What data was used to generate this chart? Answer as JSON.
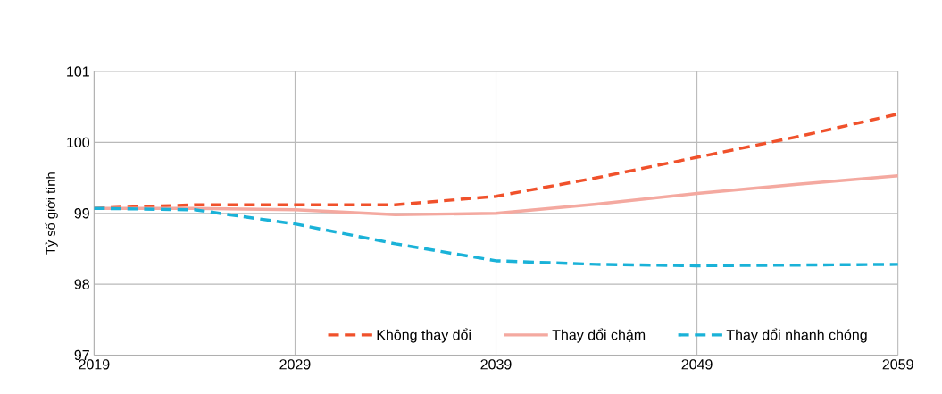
{
  "chart_data": {
    "type": "line",
    "ylabel": "Tỷ số giới tính",
    "x": [
      2019,
      2024,
      2029,
      2034,
      2039,
      2044,
      2049,
      2054,
      2059
    ],
    "series": [
      {
        "name": "Không thay đổi",
        "color": "#f0512b",
        "line_style": "dashed",
        "values": [
          99.07,
          99.12,
          99.12,
          99.12,
          99.24,
          99.5,
          99.79,
          100.08,
          100.4
        ]
      },
      {
        "name": "Thay đổi chậm",
        "color": "#f4a9a0",
        "line_style": "solid",
        "values": [
          99.07,
          99.07,
          99.05,
          98.98,
          99.0,
          99.13,
          99.28,
          99.41,
          99.53
        ]
      },
      {
        "name": "Thay đổi nhanh chóng",
        "color": "#1ab2d8",
        "line_style": "dashed",
        "values": [
          99.07,
          99.05,
          98.85,
          98.57,
          98.33,
          98.28,
          98.26,
          98.27,
          98.28
        ]
      }
    ],
    "xlim": [
      2019,
      2059
    ],
    "xticks": [
      2019,
      2029,
      2039,
      2049,
      2059
    ],
    "ylim": [
      97,
      101
    ],
    "yticks": [
      97,
      98,
      99,
      100,
      101
    ],
    "grid": true,
    "legend": "bottom"
  }
}
